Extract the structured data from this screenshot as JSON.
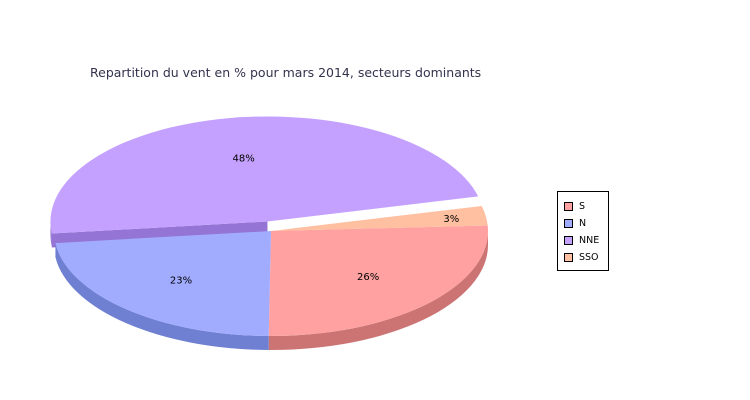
{
  "chart_data": {
    "type": "pie",
    "title": "Repartition du vent en % pour mars 2014, secteurs dominants",
    "slices": [
      {
        "name": "S",
        "value": 26,
        "label": "26%",
        "color": "#ffa1a1",
        "side": "#cc7474"
      },
      {
        "name": "N",
        "value": 23,
        "label": "23%",
        "color": "#a1acff",
        "side": "#6f80d2"
      },
      {
        "name": "NNE",
        "value": 48,
        "label": "48%",
        "color": "#c4a1ff",
        "side": "#9474d4",
        "exploded": true
      },
      {
        "name": "SSO",
        "value": 3,
        "label": "3%",
        "color": "#ffbfa1",
        "side": "#d68c6f"
      }
    ],
    "legend_position": "right",
    "style": "3d-exploded"
  }
}
